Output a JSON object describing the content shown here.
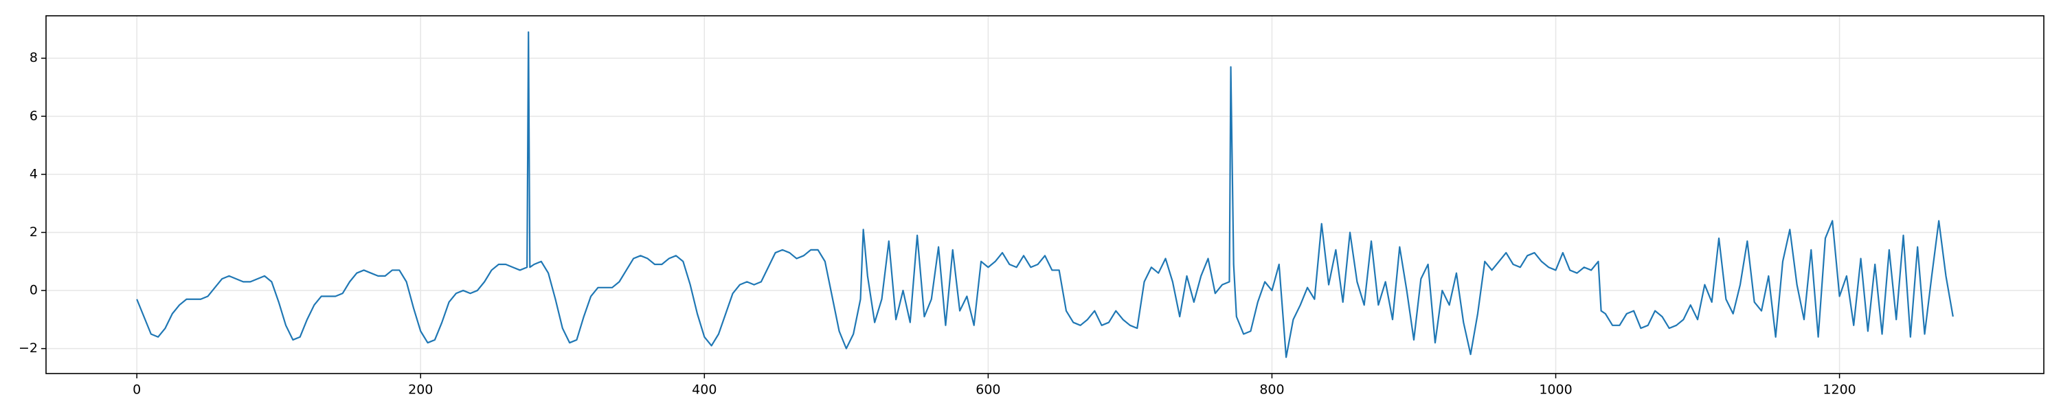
{
  "chart_data": {
    "type": "line",
    "color": "#1f77b4",
    "grid": true,
    "xlim": [
      -64,
      1344
    ],
    "ylim": [
      -2.86,
      9.46
    ],
    "xticks": [
      0,
      200,
      400,
      600,
      800,
      1000,
      1200
    ],
    "yticks": [
      {
        "value": -2,
        "label": "−2"
      },
      0,
      2,
      4,
      6,
      8
    ],
    "x": [
      0,
      5,
      10,
      15,
      20,
      25,
      30,
      35,
      40,
      45,
      50,
      55,
      60,
      65,
      70,
      75,
      80,
      85,
      90,
      95,
      100,
      105,
      110,
      115,
      120,
      125,
      130,
      135,
      140,
      145,
      150,
      155,
      160,
      165,
      170,
      175,
      180,
      185,
      190,
      195,
      200,
      205,
      210,
      215,
      220,
      225,
      230,
      235,
      240,
      245,
      250,
      255,
      260,
      265,
      270,
      275,
      276,
      277,
      280,
      285,
      290,
      295,
      300,
      305,
      310,
      315,
      320,
      325,
      330,
      335,
      340,
      345,
      350,
      355,
      360,
      365,
      370,
      375,
      380,
      385,
      390,
      395,
      400,
      405,
      410,
      415,
      420,
      425,
      430,
      435,
      440,
      445,
      450,
      455,
      460,
      465,
      470,
      475,
      480,
      485,
      490,
      495,
      500,
      505,
      510,
      512,
      515,
      520,
      525,
      530,
      535,
      540,
      545,
      550,
      555,
      560,
      565,
      570,
      575,
      580,
      585,
      590,
      595,
      600,
      605,
      610,
      615,
      620,
      625,
      630,
      635,
      640,
      645,
      650,
      655,
      660,
      665,
      670,
      675,
      680,
      685,
      690,
      695,
      700,
      705,
      710,
      715,
      720,
      725,
      730,
      735,
      740,
      745,
      750,
      755,
      760,
      765,
      770,
      771,
      773,
      775,
      780,
      785,
      790,
      795,
      800,
      805,
      810,
      815,
      820,
      825,
      830,
      835,
      840,
      845,
      850,
      855,
      860,
      865,
      870,
      875,
      880,
      885,
      890,
      895,
      900,
      905,
      910,
      915,
      920,
      925,
      930,
      935,
      940,
      945,
      950,
      955,
      960,
      965,
      970,
      975,
      980,
      985,
      990,
      995,
      1000,
      1005,
      1010,
      1015,
      1020,
      1025,
      1030,
      1032,
      1035,
      1040,
      1045,
      1050,
      1055,
      1060,
      1065,
      1070,
      1075,
      1080,
      1085,
      1090,
      1095,
      1100,
      1105,
      1110,
      1115,
      1120,
      1125,
      1130,
      1135,
      1140,
      1145,
      1150,
      1155,
      1160,
      1165,
      1170,
      1175,
      1180,
      1185,
      1190,
      1195,
      1200,
      1205,
      1210,
      1215,
      1220,
      1225,
      1230,
      1235,
      1240,
      1245,
      1250,
      1255,
      1260,
      1265,
      1270,
      1275,
      1280
    ],
    "values": [
      -0.3,
      -0.9,
      -1.5,
      -1.6,
      -1.3,
      -0.8,
      -0.5,
      -0.3,
      -0.3,
      -0.3,
      -0.2,
      0.1,
      0.4,
      0.5,
      0.4,
      0.3,
      0.3,
      0.4,
      0.5,
      0.3,
      -0.4,
      -1.2,
      -1.7,
      -1.6,
      -1.0,
      -0.5,
      -0.2,
      -0.2,
      -0.2,
      -0.1,
      0.3,
      0.6,
      0.7,
      0.6,
      0.5,
      0.5,
      0.7,
      0.7,
      0.3,
      -0.6,
      -1.4,
      -1.8,
      -1.7,
      -1.1,
      -0.4,
      -0.1,
      0.0,
      -0.1,
      0.0,
      0.3,
      0.7,
      0.9,
      0.9,
      0.8,
      0.7,
      0.8,
      8.9,
      0.8,
      0.9,
      1.0,
      0.6,
      -0.3,
      -1.3,
      -1.8,
      -1.7,
      -0.9,
      -0.2,
      0.1,
      0.1,
      0.1,
      0.3,
      0.7,
      1.1,
      1.2,
      1.1,
      0.9,
      0.9,
      1.1,
      1.2,
      1.0,
      0.2,
      -0.8,
      -1.6,
      -1.9,
      -1.5,
      -0.8,
      -0.1,
      0.2,
      0.3,
      0.2,
      0.3,
      0.8,
      1.3,
      1.4,
      1.3,
      1.1,
      1.2,
      1.4,
      1.4,
      1.0,
      -0.2,
      -1.4,
      -2.0,
      -1.5,
      -0.3,
      2.1,
      0.5,
      -1.1,
      -0.3,
      1.7,
      -1.0,
      0.0,
      -1.1,
      1.9,
      -0.9,
      -0.3,
      1.5,
      -1.2,
      1.4,
      -0.7,
      -0.2,
      -1.2,
      1.0,
      0.8,
      1.0,
      1.3,
      0.9,
      0.8,
      1.2,
      0.8,
      0.9,
      1.2,
      0.7,
      0.7,
      -0.7,
      -1.1,
      -1.2,
      -1.0,
      -0.7,
      -1.2,
      -1.1,
      -0.7,
      -1.0,
      -1.2,
      -1.3,
      0.3,
      0.8,
      0.6,
      1.1,
      0.3,
      -0.9,
      0.5,
      -0.4,
      0.5,
      1.1,
      -0.1,
      0.2,
      0.3,
      7.7,
      0.9,
      -0.9,
      -1.5,
      -1.4,
      -0.4,
      0.3,
      0.0,
      0.9,
      -2.3,
      -1.0,
      -0.5,
      0.1,
      -0.3,
      2.3,
      0.2,
      1.4,
      -0.4,
      2.0,
      0.3,
      -0.5,
      1.7,
      -0.5,
      0.3,
      -1.0,
      1.5,
      0.0,
      -1.7,
      0.4,
      0.9,
      -1.8,
      0.0,
      -0.5,
      0.6,
      -1.1,
      -2.2,
      -0.8,
      1.0,
      0.7,
      1.0,
      1.3,
      0.9,
      0.8,
      1.2,
      1.3,
      1.0,
      0.8,
      0.7,
      1.3,
      0.7,
      0.6,
      0.8,
      0.7,
      1.0,
      -0.7,
      -0.8,
      -1.2,
      -1.2,
      -0.8,
      -0.7,
      -1.3,
      -1.2,
      -0.7,
      -0.9,
      -1.3,
      -1.2,
      -1.0,
      -0.5,
      -1.0,
      0.2,
      -0.4,
      1.8,
      -0.3,
      -0.8,
      0.2,
      1.7,
      -0.4,
      -0.7,
      0.5,
      -1.6,
      1.0,
      2.1,
      0.2,
      -1.0,
      1.4,
      -1.6,
      1.8,
      2.4,
      -0.2,
      0.5,
      -1.2,
      1.1,
      -1.4,
      0.9,
      -1.5,
      1.4,
      -1.0,
      1.9,
      -1.6,
      1.5,
      -1.5,
      0.5,
      2.4,
      0.5,
      -0.9
    ]
  }
}
